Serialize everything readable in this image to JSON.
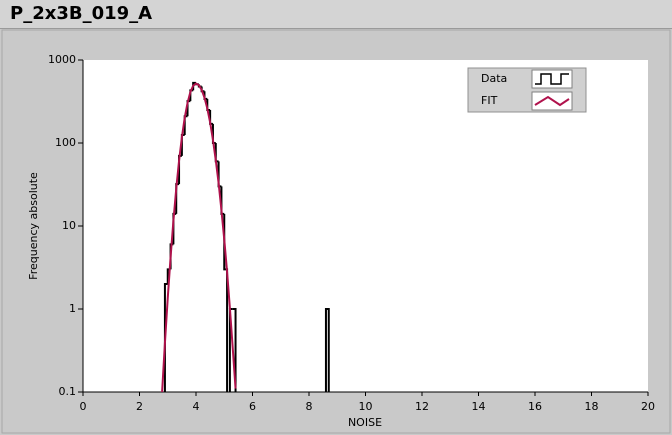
{
  "window_title": "P_2x3B_019_A",
  "chart_data": {
    "type": "histogram",
    "x_label": "NOISE",
    "y_label": "Frequency absolute",
    "xlim": [
      0,
      20
    ],
    "xticks": [
      0,
      2,
      4,
      6,
      8,
      10,
      12,
      14,
      16,
      18,
      20
    ],
    "ylim": [
      0.1,
      1000
    ],
    "yticks": [
      0.1,
      1,
      10,
      100,
      1000
    ],
    "y_log": true,
    "legend": "top-right",
    "series": [
      {
        "name": "Data",
        "color": "#000000",
        "bins": [
          2.9,
          3.0,
          3.1,
          3.2,
          3.3,
          3.4,
          3.5,
          3.6,
          3.7,
          3.8,
          3.9,
          4.0,
          4.1,
          4.2,
          4.3,
          4.4,
          4.5,
          4.6,
          4.7,
          4.8,
          4.9,
          5.0,
          5.1,
          5.2,
          5.3,
          5.4,
          5.5,
          5.6,
          5.7,
          5.8,
          5.9,
          6.0,
          6.1,
          6.2,
          6.3,
          6.4,
          6.5,
          6.6,
          6.7,
          6.8,
          6.9,
          7.0,
          7.1,
          7.2,
          7.3,
          7.4,
          7.5,
          7.6,
          7.7,
          7.8,
          7.9,
          8.0,
          8.1,
          8.2,
          8.3,
          8.4,
          8.5,
          8.6,
          8.7
        ],
        "values": [
          2,
          3,
          6,
          14,
          32,
          70,
          125,
          210,
          320,
          430,
          530,
          510,
          480,
          420,
          340,
          250,
          170,
          100,
          60,
          30,
          14,
          3,
          0,
          1,
          1,
          0,
          0,
          0,
          0,
          0,
          0,
          0,
          0,
          0,
          0,
          0,
          0,
          0,
          0,
          0,
          0,
          0,
          0,
          0,
          0,
          0,
          0,
          0,
          0,
          0,
          0,
          0,
          0,
          0,
          0,
          0,
          0,
          1
        ]
      },
      {
        "name": "FIT",
        "color": "#b0124c",
        "x": [
          2.8,
          2.9,
          3.0,
          3.1,
          3.2,
          3.3,
          3.4,
          3.5,
          3.6,
          3.7,
          3.8,
          3.9,
          4.0,
          4.1,
          4.2,
          4.3,
          4.4,
          4.5,
          4.6,
          4.7,
          4.8,
          4.9,
          5.0,
          5.1,
          5.2,
          5.3,
          5.4
        ],
        "values": [
          0.1,
          0.39,
          1.36,
          4.2,
          11.5,
          28,
          61,
          117,
          201,
          304,
          410,
          490,
          520,
          498,
          437,
          352,
          261,
          177,
          109,
          62,
          33,
          15.6,
          6.9,
          2.8,
          1.02,
          0.34,
          0.11
        ]
      }
    ]
  }
}
